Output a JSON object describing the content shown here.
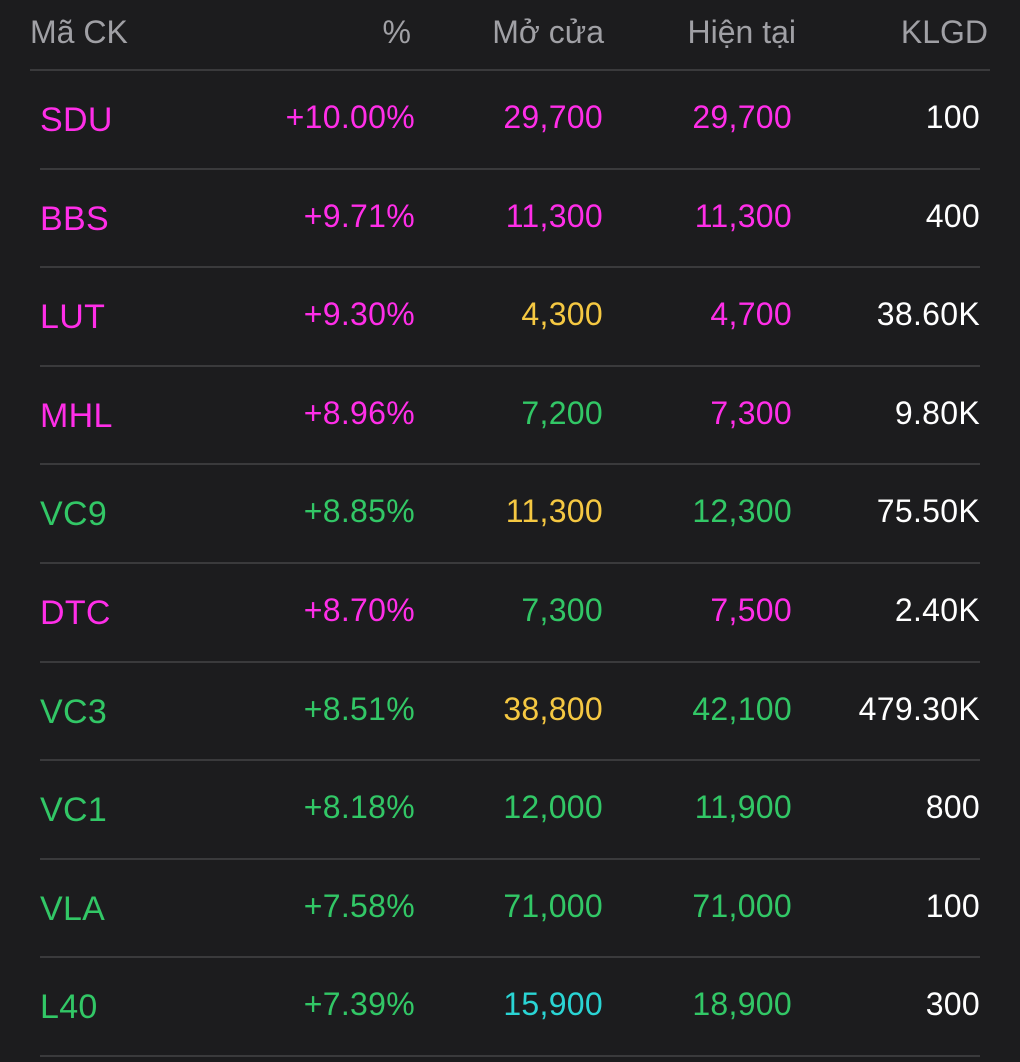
{
  "colors": {
    "background": "#1c1c1e",
    "ceiling": "#ff2ee8",
    "up": "#32c766",
    "reference": "#f5c842",
    "floor": "#2ad4d4",
    "neutral": "#ffffff",
    "header_text": "#a0a0a5",
    "divider": "#3a3a3c"
  },
  "header": {
    "symbol": "Mã CK",
    "percent": "%",
    "open": "Mở cửa",
    "current": "Hiện tại",
    "volume": "KLGD"
  },
  "rows": [
    {
      "symbol": "SDU",
      "percent": "+10.00%",
      "open": "29,700",
      "current": "29,700",
      "volume": "100",
      "symbol_color": "ceiling",
      "percent_color": "ceiling",
      "open_color": "ceiling",
      "current_color": "ceiling"
    },
    {
      "symbol": "BBS",
      "percent": "+9.71%",
      "open": "11,300",
      "current": "11,300",
      "volume": "400",
      "symbol_color": "ceiling",
      "percent_color": "ceiling",
      "open_color": "ceiling",
      "current_color": "ceiling"
    },
    {
      "symbol": "LUT",
      "percent": "+9.30%",
      "open": "4,300",
      "current": "4,700",
      "volume": "38.60K",
      "symbol_color": "ceiling",
      "percent_color": "ceiling",
      "open_color": "reference",
      "current_color": "ceiling"
    },
    {
      "symbol": "MHL",
      "percent": "+8.96%",
      "open": "7,200",
      "current": "7,300",
      "volume": "9.80K",
      "symbol_color": "ceiling",
      "percent_color": "ceiling",
      "open_color": "up",
      "current_color": "ceiling"
    },
    {
      "symbol": "VC9",
      "percent": "+8.85%",
      "open": "11,300",
      "current": "12,300",
      "volume": "75.50K",
      "symbol_color": "up",
      "percent_color": "up",
      "open_color": "reference",
      "current_color": "up"
    },
    {
      "symbol": "DTC",
      "percent": "+8.70%",
      "open": "7,300",
      "current": "7,500",
      "volume": "2.40K",
      "symbol_color": "ceiling",
      "percent_color": "ceiling",
      "open_color": "up",
      "current_color": "ceiling"
    },
    {
      "symbol": "VC3",
      "percent": "+8.51%",
      "open": "38,800",
      "current": "42,100",
      "volume": "479.30K",
      "symbol_color": "up",
      "percent_color": "up",
      "open_color": "reference",
      "current_color": "up"
    },
    {
      "symbol": "VC1",
      "percent": "+8.18%",
      "open": "12,000",
      "current": "11,900",
      "volume": "800",
      "symbol_color": "up",
      "percent_color": "up",
      "open_color": "up",
      "current_color": "up"
    },
    {
      "symbol": "VLA",
      "percent": "+7.58%",
      "open": "71,000",
      "current": "71,000",
      "volume": "100",
      "symbol_color": "up",
      "percent_color": "up",
      "open_color": "up",
      "current_color": "up"
    },
    {
      "symbol": "L40",
      "percent": "+7.39%",
      "open": "15,900",
      "current": "18,900",
      "volume": "300",
      "symbol_color": "up",
      "percent_color": "up",
      "open_color": "floor",
      "current_color": "up"
    }
  ]
}
